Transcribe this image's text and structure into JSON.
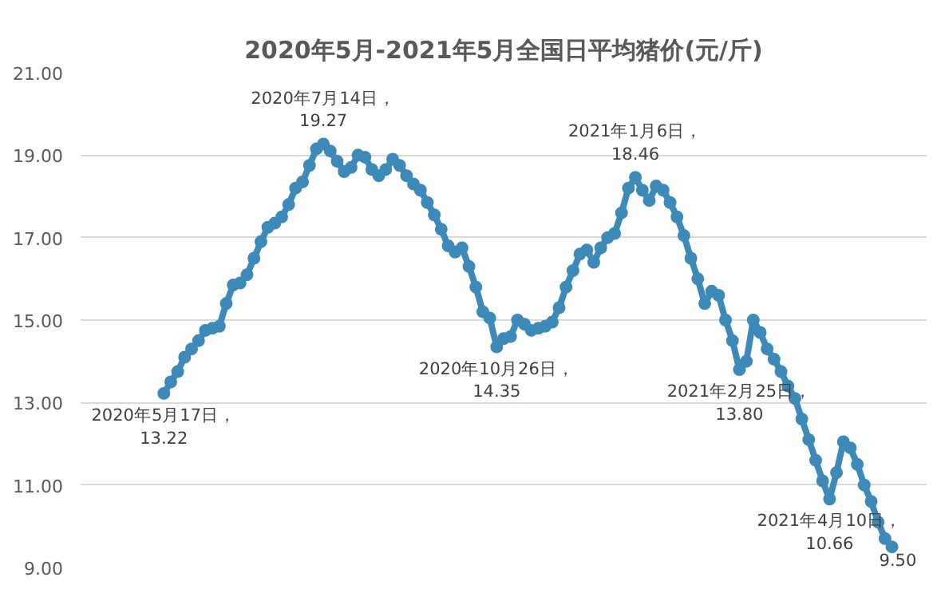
{
  "chart_data": {
    "type": "line",
    "title": "2020年5月-2021年5月全国日平均猪价(元/斤)",
    "categories": [
      null,
      null,
      null,
      null,
      null,
      null,
      null,
      null,
      null,
      null,
      null,
      null,
      null,
      null,
      null,
      null,
      null,
      null,
      null,
      null,
      null,
      null,
      null,
      null,
      null,
      null,
      null,
      null,
      null,
      null,
      null,
      null,
      null,
      null,
      null,
      null,
      null,
      null,
      null,
      null,
      null,
      null,
      null,
      null,
      null,
      null,
      null,
      null,
      null,
      null,
      null,
      null,
      null,
      null,
      null,
      null,
      null,
      null,
      null,
      null,
      null,
      null,
      null,
      null,
      null,
      null,
      null,
      null,
      null,
      null,
      null,
      null,
      null,
      null,
      null,
      null,
      null,
      null,
      null,
      null,
      null,
      null,
      null,
      null,
      null,
      null,
      null,
      null,
      null,
      null,
      null,
      null,
      null,
      null,
      null,
      null,
      null,
      null,
      null,
      null,
      null,
      null,
      null,
      null,
      null,
      null
    ],
    "ylim": [
      9,
      21
    ],
    "yticks": [
      {
        "value": 9,
        "label": "9.00"
      },
      {
        "value": 11,
        "label": "11.00"
      },
      {
        "value": 13,
        "label": "13.00"
      },
      {
        "value": 15,
        "label": "15.00"
      },
      {
        "value": 17,
        "label": "17.00"
      },
      {
        "value": 19,
        "label": "19.00"
      },
      {
        "value": 21,
        "label": "21.00"
      }
    ],
    "tick_labels": "y",
    "grid": "y",
    "marker": "circle",
    "series": [
      {
        "color": "#3d8ab8",
        "values": [
          13.22,
          13.5,
          13.75,
          14.1,
          14.3,
          14.5,
          14.75,
          14.8,
          14.85,
          15.4,
          15.85,
          15.9,
          16.1,
          16.5,
          16.9,
          17.25,
          17.35,
          17.5,
          17.8,
          18.2,
          18.35,
          18.75,
          19.15,
          19.27,
          19.1,
          18.85,
          18.6,
          18.7,
          19.0,
          18.95,
          18.65,
          18.5,
          18.65,
          18.9,
          18.75,
          18.5,
          18.3,
          18.15,
          17.85,
          17.55,
          17.2,
          16.8,
          16.65,
          16.75,
          16.3,
          15.8,
          15.2,
          15.05,
          14.35,
          14.55,
          14.6,
          15.0,
          14.9,
          14.75,
          14.8,
          14.85,
          14.95,
          15.3,
          15.8,
          16.2,
          16.6,
          16.7,
          16.4,
          16.75,
          17.0,
          17.1,
          17.6,
          18.2,
          18.46,
          18.15,
          17.9,
          18.25,
          18.15,
          17.85,
          17.5,
          17.05,
          16.5,
          16.0,
          15.4,
          15.7,
          15.6,
          15.0,
          14.5,
          13.8,
          14.0,
          15.0,
          14.7,
          14.3,
          14.05,
          13.75,
          13.4,
          13.1,
          12.6,
          12.1,
          11.6,
          11.1,
          10.66,
          11.3,
          12.05,
          11.9,
          11.5,
          11.0,
          10.6,
          10.1,
          9.7,
          9.5
        ]
      }
    ],
    "annotations": [
      {
        "text": "2020年5月17日，\n13.22",
        "y": 13.22
      },
      {
        "text": "2020年7月14日，\n19.27",
        "y": 19.27
      },
      {
        "text": "2020年10月26日，\n14.35",
        "y": 14.35
      },
      {
        "text": "2021年1月6日，\n18.46",
        "y": 18.46
      },
      {
        "text": "2021年2月25日，\n13.80",
        "y": 13.8
      },
      {
        "text": "2021年4月10日，\n10.66",
        "y": 10.66
      },
      {
        "text": "9.50",
        "y": 9.5
      }
    ]
  }
}
